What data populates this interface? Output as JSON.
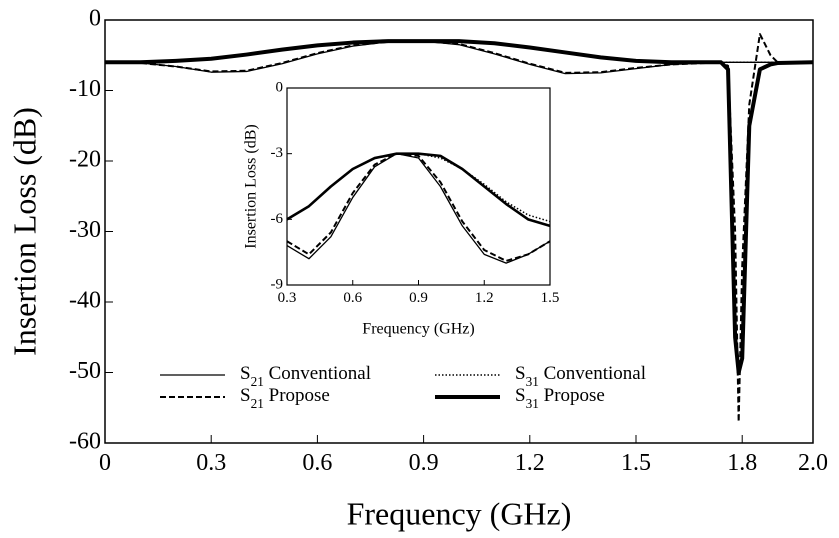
{
  "chart_data": [
    {
      "type": "line",
      "xlabel": "Frequency (GHz)",
      "ylabel": "Insertion Loss (dB)",
      "x": [
        0,
        0.1,
        0.2,
        0.3,
        0.4,
        0.5,
        0.6,
        0.7,
        0.8,
        0.9,
        1.0,
        1.1,
        1.2,
        1.3,
        1.4,
        1.5,
        1.6,
        1.7,
        1.74,
        1.76,
        1.78,
        1.79,
        1.8,
        1.82,
        1.85,
        1.88,
        1.9,
        2.0
      ],
      "series": [
        {
          "name": "S21 Conventional",
          "color": "#000000",
          "style": "solid",
          "linewidth": 1.3,
          "values": [
            -6,
            -6.1,
            -6.6,
            -7.4,
            -7.3,
            -6.2,
            -4.8,
            -3.7,
            -3.1,
            -3.0,
            -3.5,
            -4.8,
            -6.3,
            -7.6,
            -7.5,
            -6.9,
            -6.3,
            -6.1,
            -6,
            -6,
            -6,
            -6,
            -6,
            -6,
            -6,
            -6,
            -6,
            -6
          ]
        },
        {
          "name": "S21 Propose",
          "color": "#000000",
          "style": "dashed",
          "linewidth": 2,
          "values": [
            -6,
            -6.1,
            -6.6,
            -7.3,
            -7.2,
            -6.1,
            -4.7,
            -3.6,
            -3.1,
            -3.0,
            -3.4,
            -4.7,
            -6.2,
            -7.5,
            -7.4,
            -6.8,
            -6.3,
            -6.1,
            -6,
            -6.5,
            -30,
            -57,
            -35,
            -12,
            -2,
            -5,
            -6,
            -6
          ]
        },
        {
          "name": "S31 Conventional",
          "color": "#000000",
          "style": "dotted",
          "linewidth": 1.5,
          "values": [
            -6,
            -6,
            -5.8,
            -5.5,
            -4.9,
            -4.2,
            -3.6,
            -3.2,
            -3.0,
            -3.0,
            -3.0,
            -3.3,
            -3.9,
            -4.6,
            -5.3,
            -5.8,
            -6.0,
            -6.0,
            -6,
            -6,
            -6,
            -6,
            -6,
            -6,
            -6,
            -6,
            -6,
            -6
          ]
        },
        {
          "name": "S31 Propose",
          "color": "#000000",
          "style": "solid",
          "linewidth": 4,
          "values": [
            -6,
            -6,
            -5.8,
            -5.5,
            -4.9,
            -4.2,
            -3.6,
            -3.2,
            -3.0,
            -3.0,
            -3.0,
            -3.3,
            -3.9,
            -4.6,
            -5.3,
            -5.8,
            -6.0,
            -6.0,
            -6,
            -7,
            -45,
            -50,
            -48,
            -15,
            -7,
            -6.3,
            -6.1,
            -6
          ]
        }
      ],
      "xlim": [
        0,
        2
      ],
      "ylim": [
        -60,
        0
      ],
      "xticks": [
        0,
        0.3,
        0.6,
        0.9,
        1.2,
        1.5,
        1.8,
        {
          "value": 2,
          "label": "2.0"
        }
      ],
      "yticks": [
        0,
        -10,
        -20,
        -30,
        -40,
        -50,
        -60
      ],
      "legend": "lower center"
    },
    {
      "type": "line",
      "xlabel": "Frequency (GHz)",
      "ylabel": "Insertion Loss (dB)",
      "x": [
        0.3,
        0.4,
        0.5,
        0.6,
        0.7,
        0.8,
        0.9,
        1.0,
        1.1,
        1.2,
        1.3,
        1.4,
        1.5
      ],
      "series": [
        {
          "color": "#000000",
          "style": "solid",
          "linewidth": 1.3,
          "values": [
            -7.2,
            -7.8,
            -6.8,
            -5.0,
            -3.6,
            -3.0,
            -3.2,
            -4.5,
            -6.3,
            -7.6,
            -8.0,
            -7.6,
            -7.0
          ]
        },
        {
          "color": "#000000",
          "style": "dashed",
          "linewidth": 2,
          "values": [
            -7.0,
            -7.6,
            -6.6,
            -4.8,
            -3.5,
            -3.0,
            -3.1,
            -4.3,
            -6.1,
            -7.4,
            -7.9,
            -7.6,
            -7.0
          ]
        },
        {
          "color": "#000000",
          "style": "dotted",
          "linewidth": 1.5,
          "values": [
            -6.0,
            -5.4,
            -4.5,
            -3.7,
            -3.2,
            -3.0,
            -3.0,
            -3.2,
            -3.7,
            -4.4,
            -5.2,
            -5.8,
            -6.1
          ]
        },
        {
          "color": "#000000",
          "style": "solid",
          "linewidth": 2.6,
          "values": [
            -6.0,
            -5.4,
            -4.5,
            -3.7,
            -3.2,
            -3.0,
            -3.0,
            -3.1,
            -3.7,
            -4.5,
            -5.3,
            -6.0,
            -6.3
          ]
        }
      ],
      "xlim": [
        0.3,
        1.5
      ],
      "ylim": [
        -9,
        0
      ],
      "xticks": [
        0.3,
        0.6,
        0.9,
        1.2,
        1.5
      ],
      "yticks": [
        0,
        -3,
        -6,
        -9
      ]
    }
  ]
}
